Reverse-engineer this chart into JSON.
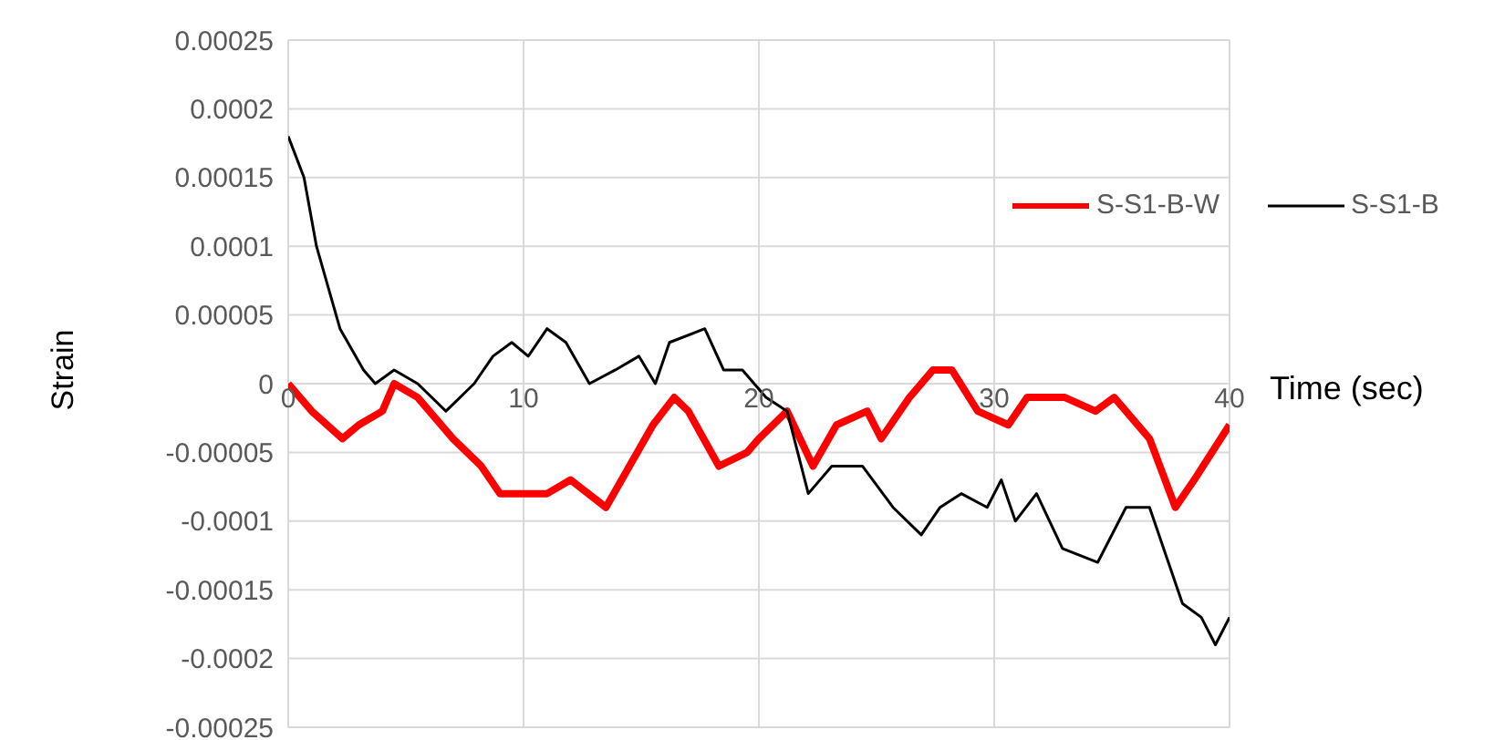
{
  "chart_data": {
    "type": "line",
    "xlabel": "Time (sec)",
    "ylabel": "Strain",
    "xlim": [
      0,
      40
    ],
    "xticks": [
      0,
      10,
      20,
      30,
      40
    ],
    "ylim": [
      -0.00025,
      0.00025
    ],
    "yticks": [
      -0.00025,
      -0.0002,
      -0.00015,
      -0.0001,
      {
        "value": -5e-05,
        "label": "-0.00005"
      },
      0,
      {
        "value": 5e-05,
        "label": "0.00005"
      },
      0.0001,
      0.00015,
      0.0002,
      0.00025
    ],
    "grid": true,
    "legend": "right",
    "series": [
      {
        "name": "S-S1-B-W",
        "color": "#ff0000",
        "x": [
          0,
          1,
          2.3,
          3,
          4,
          4.5,
          5.5,
          7,
          8.2,
          9,
          10,
          11,
          12,
          13.5,
          14.5,
          15.5,
          16.4,
          17,
          18.3,
          19.5,
          20,
          21.2,
          22.3,
          23.3,
          24.6,
          25.2,
          26.4,
          27.4,
          28.2,
          29.3,
          30.6,
          31.4,
          33,
          34.3,
          35.1,
          36.6,
          37.7,
          38.5,
          40
        ],
        "values": [
          0,
          -2e-05,
          -4e-05,
          -3e-05,
          -2e-05,
          0,
          -1e-05,
          -4e-05,
          -6e-05,
          -8e-05,
          -8e-05,
          -8e-05,
          -7e-05,
          -9e-05,
          -6e-05,
          -3e-05,
          -1e-05,
          -2e-05,
          -6e-05,
          -5e-05,
          -4e-05,
          -2e-05,
          -6e-05,
          -3e-05,
          -2e-05,
          -4e-05,
          -1e-05,
          1e-05,
          1e-05,
          -2e-05,
          -3e-05,
          -1e-05,
          -1e-05,
          -2e-05,
          -1e-05,
          -4e-05,
          -9e-05,
          -7e-05,
          -3e-05
        ]
      },
      {
        "name": "S-S1-B",
        "color": "#000000",
        "x": [
          0,
          0.67,
          1.2,
          2.2,
          3.2,
          3.7,
          4.5,
          5.5,
          6.7,
          7.9,
          8.7,
          9.5,
          10.2,
          11,
          11.8,
          12.8,
          13.9,
          14.9,
          15.6,
          16.2,
          17.7,
          18.5,
          19.3,
          20.3,
          21.2,
          22.1,
          23.1,
          24.4,
          25.7,
          26.9,
          27.7,
          28.6,
          29.7,
          30.3,
          30.9,
          31.8,
          32.9,
          34.4,
          35.6,
          36.6,
          38,
          38.8,
          39.4,
          40
        ],
        "values": [
          0.00018,
          0.00015,
          0.0001,
          4e-05,
          1e-05,
          0,
          1e-05,
          0,
          -2e-05,
          0,
          2e-05,
          3e-05,
          2e-05,
          4e-05,
          3e-05,
          0,
          1e-05,
          2e-05,
          0,
          3e-05,
          4e-05,
          1e-05,
          1e-05,
          -1e-05,
          -2e-05,
          -8e-05,
          -6e-05,
          -6e-05,
          -9e-05,
          -0.00011,
          -9e-05,
          -8e-05,
          -9e-05,
          -7e-05,
          -0.0001,
          -8e-05,
          -0.00012,
          -0.00013,
          -9e-05,
          -9e-05,
          -0.00016,
          -0.00017,
          -0.00019,
          -0.00017
        ]
      }
    ]
  }
}
